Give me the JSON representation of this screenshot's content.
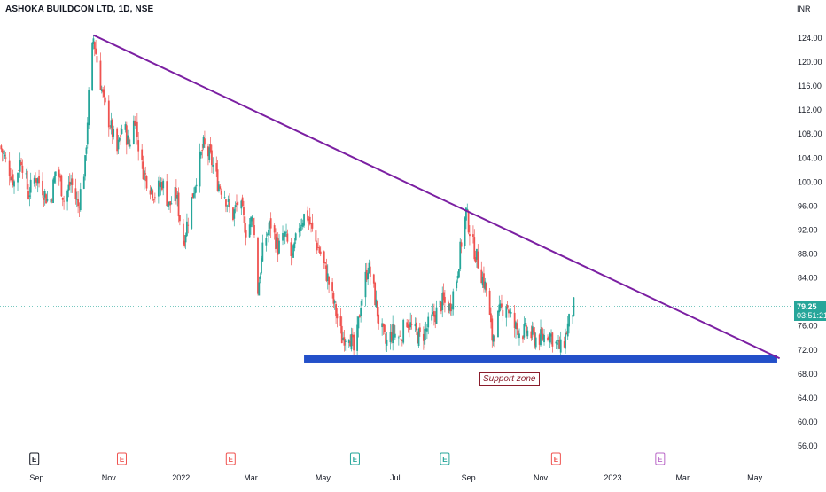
{
  "header": {
    "title": "ASHOKA BUILDCON LTD, 1D, NSE",
    "currency": "INR"
  },
  "last_price": {
    "value": "79.25",
    "countdown": "03:51:21"
  },
  "annotations": {
    "support_label": "Support zone"
  },
  "colors": {
    "up": "#26a69a",
    "down": "#ef5350",
    "trendline": "#7b1fa2",
    "support": "#2350c9",
    "label": "#8a1c2b"
  },
  "events": [
    {
      "label": "E",
      "x": "2021-08-30",
      "color": "#131722"
    },
    {
      "label": "E",
      "x": "2021-11-12",
      "color": "#ef5350"
    },
    {
      "label": "E",
      "x": "2022-02-12",
      "color": "#ef5350"
    },
    {
      "label": "E",
      "x": "2022-05-28",
      "color": "#26a69a"
    },
    {
      "label": "E",
      "x": "2022-08-12",
      "color": "#26a69a"
    },
    {
      "label": "E",
      "x": "2022-11-14",
      "color": "#ef5350"
    },
    {
      "label": "E",
      "x": "2023-02-10",
      "color": "#ba68c8"
    }
  ],
  "chart_data": {
    "type": "candlestick",
    "title": "ASHOKA BUILDCON LTD, 1D, NSE",
    "xlabel": "",
    "ylabel": "",
    "x_range": [
      "2021-08-01",
      "2023-06-01"
    ],
    "ylim": [
      53,
      126
    ],
    "y_ticks": [
      56,
      60,
      64,
      68,
      72,
      76,
      84,
      88,
      92,
      96,
      100,
      104,
      108,
      112,
      116,
      120,
      124
    ],
    "x_ticks": [
      {
        "label": "Sep",
        "date": "2021-09-01"
      },
      {
        "label": "Nov",
        "date": "2021-11-01"
      },
      {
        "label": "2022",
        "date": "2022-01-01"
      },
      {
        "label": "Mar",
        "date": "2022-03-01"
      },
      {
        "label": "May",
        "date": "2022-05-01"
      },
      {
        "label": "Jul",
        "date": "2022-07-01"
      },
      {
        "label": "Sep",
        "date": "2022-09-01"
      },
      {
        "label": "Nov",
        "date": "2022-11-01"
      },
      {
        "label": "2023",
        "date": "2023-01-01"
      },
      {
        "label": "Mar",
        "date": "2023-03-01"
      },
      {
        "label": "May",
        "date": "2023-05-01"
      }
    ],
    "close_path": [
      [
        "2021-08-01",
        106
      ],
      [
        "2021-08-07",
        103
      ],
      [
        "2021-08-13",
        100
      ],
      [
        "2021-08-19",
        104
      ],
      [
        "2021-08-25",
        98
      ],
      [
        "2021-08-31",
        101
      ],
      [
        "2021-09-06",
        99
      ],
      [
        "2021-09-12",
        96
      ],
      [
        "2021-09-18",
        103
      ],
      [
        "2021-09-24",
        97
      ],
      [
        "2021-09-30",
        100
      ],
      [
        "2021-10-06",
        96
      ],
      [
        "2021-10-12",
        103
      ],
      [
        "2021-10-16",
        118
      ],
      [
        "2021-10-19",
        124
      ],
      [
        "2021-10-23",
        119
      ],
      [
        "2021-10-28",
        113
      ],
      [
        "2021-11-03",
        109
      ],
      [
        "2021-11-08",
        105
      ],
      [
        "2021-11-13",
        110
      ],
      [
        "2021-11-18",
        106
      ],
      [
        "2021-11-23",
        111
      ],
      [
        "2021-11-28",
        103
      ],
      [
        "2021-12-04",
        100
      ],
      [
        "2021-12-10",
        98
      ],
      [
        "2021-12-16",
        100
      ],
      [
        "2021-12-22",
        96
      ],
      [
        "2021-12-28",
        98
      ],
      [
        "2022-01-03",
        90
      ],
      [
        "2022-01-09",
        96
      ],
      [
        "2022-01-15",
        102
      ],
      [
        "2022-01-20",
        106
      ],
      [
        "2022-01-26",
        104
      ],
      [
        "2022-02-01",
        100
      ],
      [
        "2022-02-07",
        98
      ],
      [
        "2022-02-13",
        94
      ],
      [
        "2022-02-19",
        97
      ],
      [
        "2022-02-25",
        92
      ],
      [
        "2022-03-03",
        94
      ],
      [
        "2022-03-07",
        82
      ],
      [
        "2022-03-12",
        90
      ],
      [
        "2022-03-18",
        93
      ],
      [
        "2022-03-24",
        89
      ],
      [
        "2022-03-30",
        91
      ],
      [
        "2022-04-05",
        87
      ],
      [
        "2022-04-11",
        93
      ],
      [
        "2022-04-17",
        95
      ],
      [
        "2022-04-23",
        91
      ],
      [
        "2022-04-29",
        88
      ],
      [
        "2022-05-05",
        84
      ],
      [
        "2022-05-11",
        79
      ],
      [
        "2022-05-17",
        74
      ],
      [
        "2022-05-23",
        75
      ],
      [
        "2022-05-28",
        71
      ],
      [
        "2022-06-02",
        80
      ],
      [
        "2022-06-08",
        86
      ],
      [
        "2022-06-12",
        83
      ],
      [
        "2022-06-17",
        77
      ],
      [
        "2022-06-23",
        73
      ],
      [
        "2022-06-29",
        75
      ],
      [
        "2022-07-05",
        74
      ],
      [
        "2022-07-11",
        77
      ],
      [
        "2022-07-17",
        75
      ],
      [
        "2022-07-23",
        74
      ],
      [
        "2022-07-29",
        76
      ],
      [
        "2022-08-04",
        78
      ],
      [
        "2022-08-10",
        80
      ],
      [
        "2022-08-16",
        79
      ],
      [
        "2022-08-22",
        84
      ],
      [
        "2022-08-26",
        90
      ],
      [
        "2022-08-30",
        95
      ],
      [
        "2022-09-04",
        90
      ],
      [
        "2022-09-10",
        86
      ],
      [
        "2022-09-16",
        82
      ],
      [
        "2022-09-21",
        74
      ],
      [
        "2022-09-27",
        78
      ],
      [
        "2022-10-03",
        80
      ],
      [
        "2022-10-09",
        76
      ],
      [
        "2022-10-15",
        75
      ],
      [
        "2022-10-21",
        75
      ],
      [
        "2022-10-27",
        74
      ],
      [
        "2022-11-02",
        74
      ],
      [
        "2022-11-08",
        75
      ],
      [
        "2022-11-14",
        73
      ],
      [
        "2022-11-19",
        72
      ],
      [
        "2022-11-24",
        76
      ],
      [
        "2022-11-29",
        79.25
      ]
    ],
    "trendline": {
      "start": [
        "2021-10-19",
        124.5
      ],
      "end": [
        "2023-05-22",
        70.6
      ]
    },
    "support_zone": {
      "start": "2022-04-15",
      "end": "2023-05-20",
      "low": 69.9,
      "high": 71.2,
      "label": "Support zone"
    },
    "last_price_line": 79.25
  }
}
